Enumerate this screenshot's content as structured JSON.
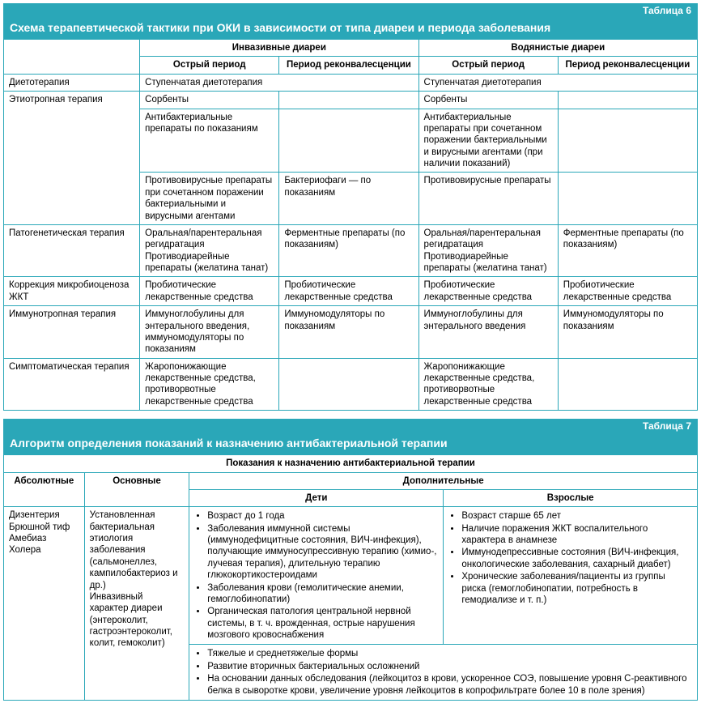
{
  "colors": {
    "brand": "#2aa7b8",
    "text": "#000000",
    "bg": "#ffffff"
  },
  "table6": {
    "label": "Таблица 6",
    "title": "Схема терапевтической тактики при ОКИ в зависимости от типа диареи и периода заболевания",
    "group_headers": [
      "Инвазивные диареи",
      "Водянистые диареи"
    ],
    "sub_headers": [
      "Острый период",
      "Период реконвалесценции",
      "Острый период",
      "Период реконвалесценции"
    ],
    "rows": {
      "diet": {
        "label": "Диетотерапия",
        "c1": "Ступенчатая диетотерапия",
        "c2": "Ступенчатая диетотерапия"
      },
      "etio": {
        "label": "Этиотропная терапия",
        "r1c1": "Сорбенты",
        "r1c2": "",
        "r1c3": "Сорбенты",
        "r1c4": "",
        "r2c1": "Антибактериальные препараты по показаниям",
        "r2c2": "",
        "r2c3": "Антибактериальные препараты при сочетанном поражении бактериальными и вирусными агентами (при наличии показаний)",
        "r2c4": "",
        "r3c1": "Противовирусные препараты при сочетанном поражении бактериальными и вирусными агентами",
        "r3c2": "Бактериофаги — по показаниям",
        "r3c3": "Противовирусные препараты",
        "r3c4": ""
      },
      "patho": {
        "label": "Патогенетическая терапия",
        "c1": "Оральная/парентеральная регидратация\nПротиводиарейные препараты (желатина танат)",
        "c2": "Ферментные препараты (по показаниям)",
        "c3": "Оральная/парентеральная регидратация\nПротиводиарейные препараты (желатина танат)",
        "c4": "Ферментные препараты (по показаниям)"
      },
      "micro": {
        "label": "Коррекция микробиоценоза ЖКТ",
        "c1": "Пробиотические лекарственные средства",
        "c2": "Пробиотические лекарственные средства",
        "c3": "Пробиотические лекарственные средства",
        "c4": "Пробиотические лекарственные средства"
      },
      "immuno": {
        "label": "Иммунотропная терапия",
        "c1": "Иммуноглобулины для энтерального введения, иммуномодуляторы по показаниям",
        "c2": "Иммуномодуляторы по показаниям",
        "c3": "Иммуноглобулины для энтерального введения",
        "c4": "Иммуномодуляторы по показаниям"
      },
      "sympt": {
        "label": "Симптоматическая терапия",
        "c1": "Жаропонижающие лекарственные средства, противорвотные лекарственные средства",
        "c2": "",
        "c3": "Жаропонижающие лекарственные средства, противорвотные лекарственные средства",
        "c4": ""
      }
    }
  },
  "table7": {
    "label": "Таблица 7",
    "title": "Алгоритм определения показаний к назначению антибактериальной терапии",
    "super_header": "Показания к назначению антибактериальной терапии",
    "cols": {
      "abs": "Абсолютные",
      "main": "Основные",
      "add": "Дополнительные",
      "kids": "Дети",
      "adults": "Взрослые"
    },
    "abs_cell": "Дизентерия\nБрюшной тиф\nАмебиаз\nХолера",
    "main_cell": "Установленная бактериальная этиология заболевания (сальмонеллез, кампилобактериоз и др.)\nИнвазивный характер диареи (энтероколит, гастроэнтероколит, колит, гемоколит)",
    "kids_list": [
      "Возраст до 1 года",
      "Заболевания иммунной системы (иммунодефицитные состояния, ВИЧ-инфекция), получающие иммуносупрессивную терапию (химио-, лучевая терапия), длительную терапию глюкокортикостероидами",
      "Заболевания крови (гемолитические анемии, гемоглобинопатии)",
      "Органическая патология центральной нервной системы, в т. ч. врожденная, острые нарушения мозгового кровоснабжения"
    ],
    "adults_list": [
      "Возраст старше 65 лет",
      "Наличие поражения ЖКТ воспалительного характера в анамнезе",
      "Иммунодепрессивные состояния (ВИЧ-инфекция, онкологические заболевания, сахарный диабет)",
      "Хронические заболевания/пациенты из группы риска (гемоглобинопатии, потребность в гемодиализе и т. п.)"
    ],
    "shared_list": [
      "Тяжелые и среднетяжелые формы",
      "Развитие вторичных бактериальных осложнений",
      "На основании данных обследования (лейкоцитоз в крови, ускоренное СОЭ, повышение уровня С-реактивного белка в сыворотке крови, увеличение уровня лейкоцитов в копрофильтрате более 10 в поле зрения)"
    ]
  }
}
